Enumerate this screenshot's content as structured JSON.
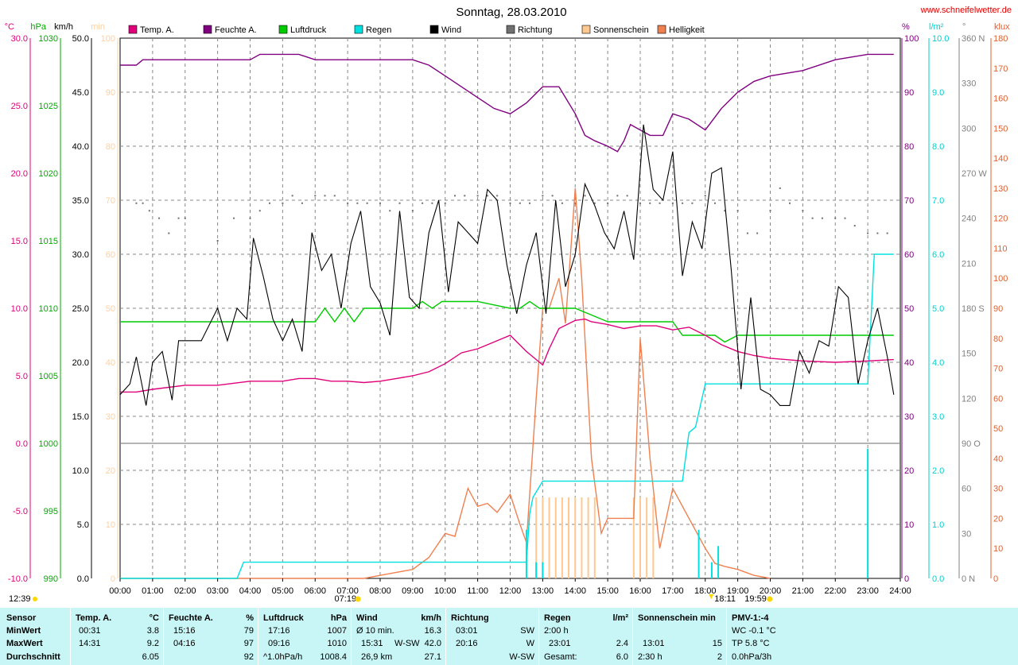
{
  "title": "Sonntag, 28.03.2010",
  "website": "www.schneifelwetter.de",
  "legend": [
    {
      "label": "Temp. A.",
      "color": "#e0007a"
    },
    {
      "label": "Feuchte A.",
      "color": "#800080"
    },
    {
      "label": "Luftdruck",
      "color": "#00cc00"
    },
    {
      "label": "Regen",
      "color": "#00e0e0"
    },
    {
      "label": "Wind",
      "color": "#000000"
    },
    {
      "label": "Richtung",
      "color": "#707070"
    },
    {
      "label": "Sonnenschein",
      "color": "#ffc890"
    },
    {
      "label": "Helligkeit",
      "color": "#f08050"
    }
  ],
  "axes": {
    "temp": {
      "unit": "°C",
      "ticks": [
        "30.0",
        "25.0",
        "20.0",
        "15.0",
        "10.0",
        "5.0",
        "0.0",
        "-5.0",
        "-10.0"
      ],
      "color": "#e0007a"
    },
    "pressure": {
      "unit": "hPa",
      "ticks": [
        "1030",
        "1025",
        "1020",
        "1015",
        "1010",
        "1005",
        "1000",
        "995",
        "990"
      ],
      "color": "#00aa00"
    },
    "wind": {
      "unit": "km/h",
      "ticks": [
        "50.0",
        "45.0",
        "40.0",
        "35.0",
        "30.0",
        "25.0",
        "20.0",
        "15.0",
        "10.0",
        "5.0",
        "0.0"
      ],
      "color": "#000000"
    },
    "sunmin": {
      "unit": "min",
      "ticks": [
        "100",
        "90",
        "80",
        "70",
        "60",
        "50",
        "40",
        "30",
        "20",
        "10",
        "0"
      ],
      "color": "#ffd0a0"
    },
    "humidity": {
      "unit": "%",
      "ticks": [
        "100",
        "90",
        "80",
        "70",
        "60",
        "50",
        "40",
        "30",
        "20",
        "10",
        "0"
      ],
      "color": "#800080"
    },
    "rain": {
      "unit": "l/m²",
      "ticks": [
        "10.0",
        "9.0",
        "8.0",
        "7.0",
        "6.0",
        "5.0",
        "4.0",
        "3.0",
        "2.0",
        "1.0",
        "0.0"
      ],
      "color": "#00d0d0"
    },
    "direction": {
      "unit": "°",
      "ticks": [
        "360 N",
        "330",
        "300",
        "270 W",
        "240",
        "210",
        "180 S",
        "150",
        "120",
        "90 O",
        "60",
        "30",
        "0 N"
      ],
      "color": "#808080"
    },
    "lux": {
      "unit": "klux",
      "ticks": [
        "180",
        "170",
        "160",
        "150",
        "140",
        "130",
        "120",
        "110",
        "100",
        "90",
        "80",
        "70",
        "60",
        "50",
        "40",
        "30",
        "20",
        "10",
        "0"
      ],
      "color": "#e06030"
    }
  },
  "x_ticks": [
    "00:00",
    "01:00",
    "02:00",
    "03:00",
    "04:00",
    "05:00",
    "06:00",
    "07:00",
    "08:00",
    "09:00",
    "10:00",
    "11:00",
    "12:00",
    "13:00",
    "14:00",
    "15:00",
    "16:00",
    "17:00",
    "18:00",
    "19:00",
    "20:00",
    "21:00",
    "22:00",
    "23:00",
    "24:00"
  ],
  "markers": {
    "moonset": "12:39",
    "sunrise": "07:19",
    "sunset": "19:59",
    "moonrise": "18:11"
  },
  "chart_data": {
    "type": "line",
    "title": "Sonntag, 28.03.2010",
    "x_unit": "hours",
    "xlim": [
      0,
      24
    ],
    "series": [
      {
        "name": "Temp. A.",
        "unit": "°C",
        "ylim": [
          -10,
          30
        ],
        "color": "#e0007a",
        "x": [
          0,
          0.5,
          1,
          2,
          3,
          4,
          5,
          5.5,
          6,
          6.5,
          7,
          7.5,
          8,
          8.5,
          9,
          9.5,
          10,
          10.5,
          11,
          11.5,
          12,
          12.5,
          13,
          13.2,
          13.5,
          14,
          14.3,
          14.5,
          15,
          15.5,
          16,
          16.5,
          17,
          17.5,
          18,
          18.5,
          19,
          19.5,
          20,
          21,
          22,
          23,
          23.8
        ],
        "y": [
          3.8,
          3.8,
          4.0,
          4.3,
          4.3,
          4.6,
          4.6,
          4.8,
          4.8,
          4.6,
          4.6,
          4.5,
          4.6,
          4.8,
          5.0,
          5.3,
          5.9,
          6.7,
          7.0,
          7.5,
          8.0,
          6.8,
          5.8,
          7.0,
          8.5,
          9.1,
          9.2,
          9.0,
          8.8,
          8.5,
          8.7,
          8.7,
          8.4,
          8.6,
          8.0,
          7.3,
          6.8,
          6.5,
          6.3,
          6.1,
          6.0,
          6.1,
          6.2
        ]
      },
      {
        "name": "Feuchte A.",
        "unit": "%",
        "ylim": [
          0,
          100
        ],
        "color": "#800080",
        "x": [
          0,
          0.5,
          0.7,
          4,
          4.3,
          5.5,
          6,
          9,
          9.5,
          10,
          10.5,
          11,
          11.5,
          12,
          12.5,
          13,
          13.5,
          14,
          14.3,
          14.6,
          15,
          15.3,
          15.5,
          15.7,
          16,
          16.3,
          16.7,
          17,
          17.5,
          18,
          18.5,
          19,
          19.5,
          20,
          21,
          22,
          23,
          23.8
        ],
        "y": [
          95,
          95,
          96,
          96,
          97,
          97,
          96,
          96,
          95,
          93,
          91,
          89,
          87,
          86,
          88,
          91,
          91,
          86,
          82,
          81,
          80,
          79,
          81,
          84,
          83,
          82,
          82,
          86,
          85,
          83,
          87,
          90,
          92,
          93,
          94,
          96,
          97,
          97
        ]
      },
      {
        "name": "Luftdruck",
        "unit": "hPa",
        "ylim": [
          990,
          1030
        ],
        "color": "#00cc00",
        "x": [
          0,
          1,
          2,
          3,
          4,
          5,
          6,
          6.3,
          6.6,
          6.9,
          7.2,
          7.5,
          8,
          9,
          9.3,
          9.6,
          9.9,
          10.5,
          11,
          12,
          12.3,
          12.6,
          12.9,
          13.2,
          14,
          15,
          16,
          17,
          17.3,
          18,
          18.3,
          18.6,
          19,
          20,
          21,
          22,
          23,
          23.8
        ],
        "y": [
          1009,
          1009,
          1009,
          1009,
          1009,
          1009,
          1009,
          1010,
          1009,
          1010,
          1009,
          1010,
          1010,
          1010,
          1010.5,
          1010,
          1010.5,
          1010.5,
          1010.5,
          1010,
          1010,
          1010.5,
          1010,
          1010,
          1010,
          1009,
          1009,
          1009,
          1008,
          1008,
          1008,
          1007.5,
          1008,
          1008,
          1008,
          1008,
          1008,
          1008
        ]
      },
      {
        "name": "Regen",
        "unit": "l/m²",
        "ylim": [
          0,
          10
        ],
        "color": "#00e0e0",
        "x": [
          0,
          3.6,
          3.8,
          12.5,
          12.6,
          12.7,
          13,
          14,
          15,
          16,
          17,
          17.3,
          17.5,
          17.7,
          18,
          19,
          20,
          21,
          22,
          23,
          23.2,
          23.8
        ],
        "y": [
          0,
          0,
          0.3,
          0.3,
          1.2,
          1.5,
          1.8,
          1.8,
          1.8,
          1.8,
          1.8,
          1.8,
          2.7,
          2.8,
          3.6,
          3.6,
          3.6,
          3.6,
          3.6,
          3.6,
          6.0,
          6.0
        ]
      },
      {
        "name": "Wind",
        "unit": "km/h",
        "ylim": [
          0,
          50
        ],
        "color": "#000000",
        "x": [
          0,
          0.3,
          0.5,
          0.8,
          1,
          1.3,
          1.6,
          1.8,
          2,
          2.5,
          3,
          3.3,
          3.6,
          3.9,
          4.1,
          4.4,
          4.7,
          5,
          5.3,
          5.6,
          5.9,
          6.2,
          6.5,
          6.8,
          7.1,
          7.4,
          7.7,
          8,
          8.3,
          8.6,
          8.9,
          9.2,
          9.5,
          9.8,
          10.1,
          10.4,
          10.7,
          11,
          11.3,
          11.6,
          11.9,
          12.2,
          12.5,
          12.8,
          13.1,
          13.4,
          13.7,
          14,
          14.3,
          14.6,
          14.9,
          15.2,
          15.5,
          15.8,
          16.1,
          16.4,
          16.7,
          17,
          17.3,
          17.6,
          17.9,
          18.2,
          18.5,
          18.8,
          19.1,
          19.4,
          19.7,
          20,
          20.3,
          20.6,
          20.9,
          21.2,
          21.5,
          21.8,
          22.1,
          22.4,
          22.7,
          23,
          23.3,
          23.6,
          23.8
        ],
        "y": [
          17,
          18,
          20.5,
          16,
          20,
          21,
          16.5,
          22,
          22,
          22,
          25,
          22,
          25,
          24,
          31.5,
          28,
          24,
          22,
          24,
          21,
          32,
          28.5,
          30,
          25,
          31,
          34,
          27,
          25.5,
          22.5,
          34,
          26,
          25,
          32,
          35,
          26.5,
          33,
          32,
          31,
          36,
          35,
          29,
          24.5,
          29,
          32,
          24.5,
          35,
          27,
          30,
          36.5,
          34.5,
          32,
          30.5,
          34,
          29.5,
          42,
          36,
          35,
          39.5,
          28,
          33,
          30.5,
          37.5,
          38,
          28.5,
          17.5,
          26,
          17.5,
          17,
          16,
          16,
          21,
          19,
          22,
          21.5,
          27,
          26,
          18,
          22,
          25,
          20.5,
          17
        ]
      },
      {
        "name": "Helligkeit",
        "unit": "klux",
        "ylim": [
          0,
          180
        ],
        "color": "#f08050",
        "x": [
          0,
          7.5,
          8,
          8.5,
          9,
          9.5,
          10,
          10.3,
          10.7,
          11,
          11.3,
          11.6,
          12,
          12.3,
          12.5,
          12.8,
          13,
          13.2,
          13.5,
          13.7,
          14,
          14.2,
          14.5,
          14.8,
          15,
          15.3,
          15.5,
          15.8,
          16,
          16.3,
          16.6,
          17,
          17.5,
          18,
          18.3,
          18.6,
          19,
          19.5,
          20
        ],
        "y": [
          0,
          0,
          1,
          2,
          3,
          7,
          15,
          14,
          30,
          24,
          25,
          22,
          28,
          18,
          12,
          60,
          90,
          90,
          100,
          85,
          130,
          100,
          40,
          15,
          20,
          20,
          20,
          20,
          80,
          40,
          10,
          30,
          20,
          10,
          5,
          4,
          3,
          1,
          0
        ]
      }
    ],
    "direction_dots": {
      "unit": "°",
      "ylim": [
        0,
        360
      ],
      "x": [
        0.5,
        0.7,
        0.9,
        1.2,
        1.5,
        1.8,
        2,
        3,
        3.5,
        4,
        4.3,
        4.6,
        5,
        5.3,
        5.6,
        6,
        6.3,
        6.6,
        7,
        7.3,
        7.6,
        8,
        8.3,
        8.6,
        9,
        9.3,
        9.6,
        10,
        10.3,
        10.6,
        11,
        11.3,
        11.6,
        12,
        12.3,
        12.6,
        13,
        13.3,
        13.6,
        14,
        14.3,
        14.6,
        15,
        15.3,
        15.6,
        16,
        16.3,
        16.6,
        17,
        17.3,
        17.6,
        18,
        18.3,
        18.6,
        19,
        19.3,
        19.6,
        20,
        20.3,
        20.6,
        21,
        21.3,
        21.6,
        22,
        22.3,
        22.6,
        23,
        23.3,
        23.6
      ],
      "y": [
        250,
        250,
        245,
        240,
        230,
        240,
        240,
        225,
        240,
        240,
        245,
        250,
        250,
        255,
        250,
        255,
        255,
        255,
        250,
        250,
        250,
        250,
        245,
        250,
        245,
        250,
        250,
        250,
        255,
        255,
        255,
        255,
        255,
        250,
        250,
        250,
        255,
        255,
        250,
        250,
        255,
        250,
        250,
        255,
        255,
        250,
        250,
        250,
        250,
        250,
        250,
        255,
        250,
        245,
        245,
        230,
        230,
        245,
        260,
        250,
        245,
        240,
        240,
        240,
        240,
        235,
        230,
        230,
        230
      ]
    },
    "sunshine_bars": {
      "unit": "min",
      "x": [
        12.8,
        13.0,
        13.2,
        13.4,
        13.6,
        13.8,
        14.0,
        14.2,
        14.4,
        14.6,
        15.8,
        16.0,
        16.2,
        16.4
      ],
      "y": [
        15,
        15,
        15,
        15,
        15,
        15,
        15,
        15,
        15,
        15,
        15,
        15,
        15,
        15
      ]
    },
    "rain_bars": {
      "unit": "l/m²",
      "x": [
        12.5,
        12.8,
        13.0,
        17.8,
        18.2,
        18.4,
        23.0
      ],
      "y": [
        0.9,
        0.3,
        0.3,
        0.9,
        0.3,
        0.6,
        2.4
      ]
    }
  },
  "footer": {
    "sensor": {
      "header": "Sensor",
      "rows": [
        "MinWert",
        "MaxWert",
        "Durchschnitt"
      ]
    },
    "temp": {
      "header": "Temp. A.",
      "unit": "°C",
      "min_time": "00:31",
      "min": "3.8",
      "max_time": "14:31",
      "max": "9.2",
      "avg": "6.05"
    },
    "humidity": {
      "header": "Feuchte A.",
      "unit": "%",
      "min_time": "15:16",
      "min": "79",
      "max_time": "04:16",
      "max": "97",
      "avg": "92"
    },
    "pressure": {
      "header": "Luftdruck",
      "unit": "hPa",
      "min_time": "17:16",
      "min": "1007",
      "max_time": "09:16",
      "max": "1010",
      "trend": "^1.0hPa/h",
      "avg": "1008.4"
    },
    "wind": {
      "header": "Wind",
      "unit": "km/h",
      "row1_label": "Ø 10 min.",
      "row1_val": "16.3",
      "row2_time": "15:31",
      "row2_dir": "W-SW",
      "row2_val": "42.0",
      "row3_label": "26,9 km",
      "row3_val": "27.1"
    },
    "direction": {
      "header": "Richtung",
      "r1_time": "03:01",
      "r1_val": "SW",
      "r2_time": "20:16",
      "r2_val": "W",
      "r3_val": "W-SW"
    },
    "rain": {
      "header": "Regen",
      "unit": "l/m²",
      "r1_label": "2:00 h",
      "r2_time": "23:01",
      "r2_val": "2.4",
      "r3_label": "Gesamt:",
      "r3_val": "6.0"
    },
    "sunshine": {
      "header": "Sonnenschein min",
      "r2_time": "13:01",
      "r2_val": "15",
      "r3_label": "2:30 h",
      "r3_val": "2"
    },
    "pmv": {
      "header": "PMV-1:-4",
      "r1": "WC -0.1 °C",
      "r2": "TP 5.8 °C",
      "r3": "0.0hPa/3h"
    }
  }
}
